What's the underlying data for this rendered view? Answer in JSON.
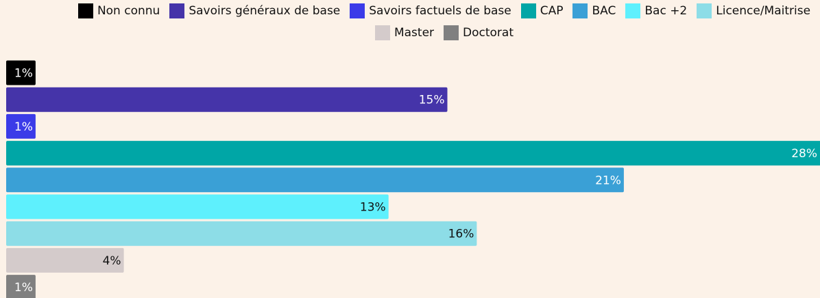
{
  "chart_data": {
    "type": "bar",
    "orientation": "horizontal",
    "categories": [
      "Non connu",
      "Savoirs généraux de base",
      "Savoirs factuels de base",
      "CAP",
      "BAC",
      "Bac +2",
      "Licence/Maitrise",
      "Master",
      "Doctorat"
    ],
    "values": [
      1,
      15,
      1,
      28,
      21,
      13,
      16,
      4,
      1
    ],
    "value_labels": [
      "1%",
      "15%",
      "1%",
      "28%",
      "21%",
      "13%",
      "16%",
      "4%",
      "1%"
    ],
    "colors": [
      "#000000",
      "#4534a9",
      "#3b3be8",
      "#00a6a6",
      "#3aa0d6",
      "#5ef0fd",
      "#8ddde7",
      "#d4cbcb",
      "#808080"
    ],
    "legend": "top"
  }
}
